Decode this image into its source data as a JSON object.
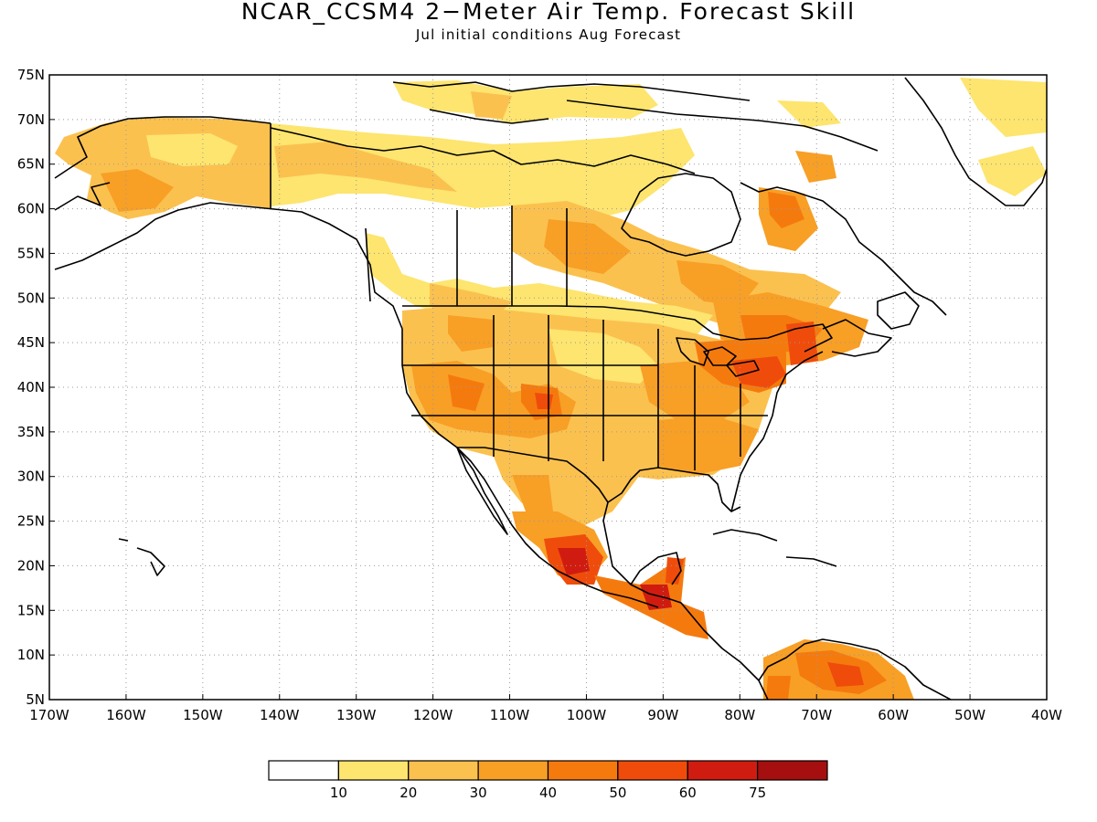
{
  "title": "NCAR_CCSM4 2−Meter Air Temp. Forecast Skill",
  "subtitle": "Jul initial conditions   Aug Forecast",
  "lat_labels": [
    "75N",
    "70N",
    "65N",
    "60N",
    "55N",
    "50N",
    "45N",
    "40N",
    "35N",
    "30N",
    "25N",
    "20N",
    "15N",
    "10N",
    "5N"
  ],
  "lon_labels": [
    "170W",
    "160W",
    "150W",
    "140W",
    "130W",
    "120W",
    "110W",
    "100W",
    "90W",
    "80W",
    "70W",
    "60W",
    "50W",
    "40W"
  ],
  "legend": {
    "labels": [
      "10",
      "20",
      "30",
      "40",
      "50",
      "60",
      "75"
    ],
    "colors": [
      "#ffffff",
      "#fde56f",
      "#fbc14f",
      "#f89f26",
      "#f57a0e",
      "#ef4c0c",
      "#d01c10",
      "#a50f0f"
    ]
  }
}
